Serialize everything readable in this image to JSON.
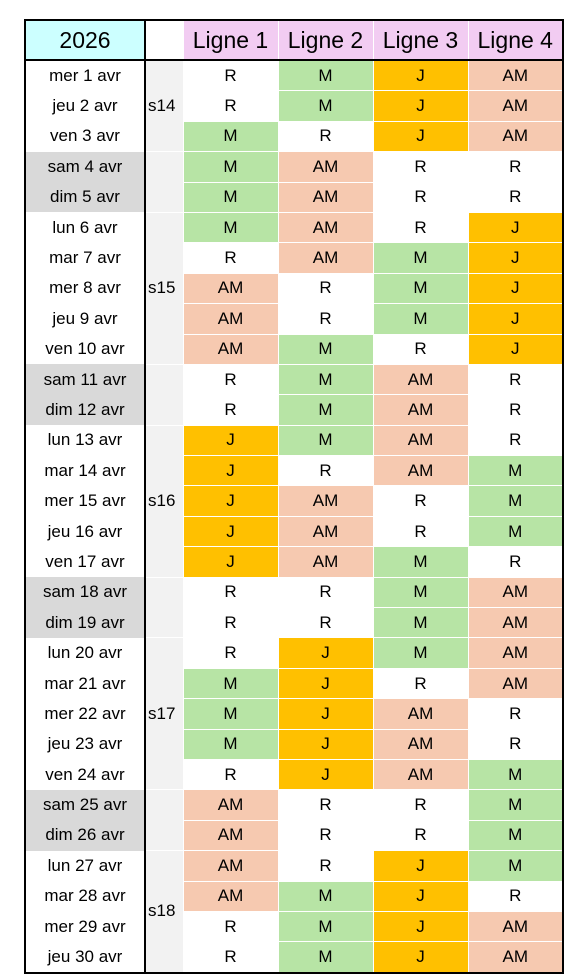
{
  "year": "2026",
  "columns": [
    "Ligne 1",
    "Ligne 2",
    "Ligne 3",
    "Ligne 4"
  ],
  "colors": {
    "year_header": "#ccffff",
    "line_header": "#f2ccf2",
    "weekend_date": "#d9d9d9",
    "week_label": "#f2f2f2",
    "R": "#ffffff",
    "M": "#b7e4a5",
    "J": "#ffc000",
    "AM": "#f6c9b0"
  },
  "weeks": [
    {
      "label": "s14",
      "start": 0,
      "span": 3
    },
    {
      "label": "",
      "start": 3,
      "span": 2
    },
    {
      "label": "s15",
      "start": 5,
      "span": 5
    },
    {
      "label": "",
      "start": 10,
      "span": 2
    },
    {
      "label": "s16",
      "start": 12,
      "span": 5
    },
    {
      "label": "",
      "start": 17,
      "span": 2
    },
    {
      "label": "s17",
      "start": 19,
      "span": 5
    },
    {
      "label": "",
      "start": 24,
      "span": 2
    },
    {
      "label": "s18",
      "start": 26,
      "span": 4
    }
  ],
  "rows": [
    {
      "date": "mer 1 avr",
      "weekend": false,
      "cells": [
        "R",
        "M",
        "J",
        "AM"
      ]
    },
    {
      "date": "jeu 2 avr",
      "weekend": false,
      "cells": [
        "R",
        "M",
        "J",
        "AM"
      ]
    },
    {
      "date": "ven 3 avr",
      "weekend": false,
      "cells": [
        "M",
        "R",
        "J",
        "AM"
      ]
    },
    {
      "date": "sam 4 avr",
      "weekend": true,
      "cells": [
        "M",
        "AM",
        "R",
        "R"
      ]
    },
    {
      "date": "dim 5 avr",
      "weekend": true,
      "cells": [
        "M",
        "AM",
        "R",
        "R"
      ]
    },
    {
      "date": "lun 6 avr",
      "weekend": false,
      "cells": [
        "M",
        "AM",
        "R",
        "J"
      ]
    },
    {
      "date": "mar 7 avr",
      "weekend": false,
      "cells": [
        "R",
        "AM",
        "M",
        "J"
      ]
    },
    {
      "date": "mer 8 avr",
      "weekend": false,
      "cells": [
        "AM",
        "R",
        "M",
        "J"
      ]
    },
    {
      "date": "jeu 9 avr",
      "weekend": false,
      "cells": [
        "AM",
        "R",
        "M",
        "J"
      ]
    },
    {
      "date": "ven 10 avr",
      "weekend": false,
      "cells": [
        "AM",
        "M",
        "R",
        "J"
      ]
    },
    {
      "date": "sam 11 avr",
      "weekend": true,
      "cells": [
        "R",
        "M",
        "AM",
        "R"
      ]
    },
    {
      "date": "dim 12 avr",
      "weekend": true,
      "cells": [
        "R",
        "M",
        "AM",
        "R"
      ]
    },
    {
      "date": "lun 13 avr",
      "weekend": false,
      "cells": [
        "J",
        "M",
        "AM",
        "R"
      ]
    },
    {
      "date": "mar 14 avr",
      "weekend": false,
      "cells": [
        "J",
        "R",
        "AM",
        "M"
      ]
    },
    {
      "date": "mer 15 avr",
      "weekend": false,
      "cells": [
        "J",
        "AM",
        "R",
        "M"
      ]
    },
    {
      "date": "jeu 16 avr",
      "weekend": false,
      "cells": [
        "J",
        "AM",
        "R",
        "M"
      ]
    },
    {
      "date": "ven 17 avr",
      "weekend": false,
      "cells": [
        "J",
        "AM",
        "M",
        "R"
      ]
    },
    {
      "date": "sam 18 avr",
      "weekend": true,
      "cells": [
        "R",
        "R",
        "M",
        "AM"
      ]
    },
    {
      "date": "dim 19 avr",
      "weekend": true,
      "cells": [
        "R",
        "R",
        "M",
        "AM"
      ]
    },
    {
      "date": "lun 20 avr",
      "weekend": false,
      "cells": [
        "R",
        "J",
        "M",
        "AM"
      ]
    },
    {
      "date": "mar 21 avr",
      "weekend": false,
      "cells": [
        "M",
        "J",
        "R",
        "AM"
      ]
    },
    {
      "date": "mer 22 avr",
      "weekend": false,
      "cells": [
        "M",
        "J",
        "AM",
        "R"
      ]
    },
    {
      "date": "jeu 23 avr",
      "weekend": false,
      "cells": [
        "M",
        "J",
        "AM",
        "R"
      ]
    },
    {
      "date": "ven 24 avr",
      "weekend": false,
      "cells": [
        "R",
        "J",
        "AM",
        "M"
      ]
    },
    {
      "date": "sam 25 avr",
      "weekend": true,
      "cells": [
        "AM",
        "R",
        "R",
        "M"
      ]
    },
    {
      "date": "dim 26 avr",
      "weekend": true,
      "cells": [
        "AM",
        "R",
        "R",
        "M"
      ]
    },
    {
      "date": "lun 27 avr",
      "weekend": false,
      "cells": [
        "AM",
        "R",
        "J",
        "M"
      ]
    },
    {
      "date": "mar 28 avr",
      "weekend": false,
      "cells": [
        "AM",
        "M",
        "J",
        "R"
      ]
    },
    {
      "date": "mer 29 avr",
      "weekend": false,
      "cells": [
        "R",
        "M",
        "J",
        "AM"
      ]
    },
    {
      "date": "jeu 30 avr",
      "weekend": false,
      "cells": [
        "R",
        "M",
        "J",
        "AM"
      ]
    }
  ]
}
